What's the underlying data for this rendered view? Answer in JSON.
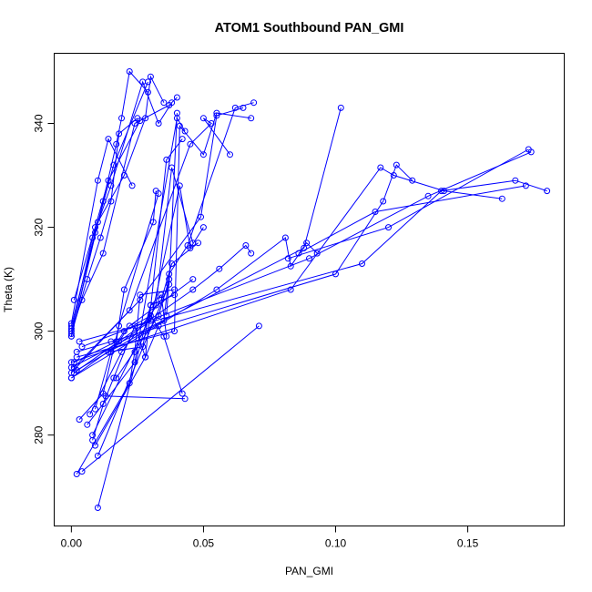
{
  "chart_data": {
    "type": "line",
    "title": "ATOM1 Southbound PAN_GMI",
    "xlabel": "PAN_GMI",
    "ylabel": "Theta (K)",
    "xlim": [
      -0.0065,
      0.1865
    ],
    "ylim": [
      262.5,
      353.5
    ],
    "xticks": [
      0.0,
      0.05,
      0.1,
      0.15
    ],
    "xtick_labels": [
      "0.00",
      "0.05",
      "0.10",
      "0.15"
    ],
    "yticks": [
      280,
      300,
      320,
      340
    ],
    "ytick_labels": [
      "280",
      "300",
      "320",
      "340"
    ],
    "series_color": "#0000ff",
    "marker": "open-circle",
    "grid": false,
    "legend": "none",
    "series": [
      {
        "x": [
          0.0,
          0.008,
          0.015,
          0.027,
          0.033,
          0.038,
          0.04
        ],
        "y": [
          300.0,
          318.0,
          328.0,
          348.0,
          340.0,
          344.0,
          345.0
        ]
      },
      {
        "x": [
          0.0,
          0.01,
          0.02,
          0.028,
          0.03,
          0.035
        ],
        "y": [
          301.0,
          321.0,
          330.0,
          341.0,
          349.0,
          344.0
        ]
      },
      {
        "x": [
          0.0,
          0.012,
          0.017,
          0.019,
          0.022,
          0.029
        ],
        "y": [
          299.0,
          325.0,
          336.0,
          341.0,
          350.0,
          346.0
        ]
      },
      {
        "x": [
          0.0,
          0.006,
          0.011,
          0.015,
          0.018,
          0.025
        ],
        "y": [
          299.5,
          310.0,
          318.0,
          325.0,
          338.0,
          341.0
        ]
      },
      {
        "x": [
          0.0,
          0.004,
          0.012,
          0.024,
          0.037
        ],
        "y": [
          300.5,
          306.0,
          315.0,
          340.0,
          343.5
        ]
      },
      {
        "x": [
          0.001,
          0.009,
          0.014,
          0.026
        ],
        "y": [
          306.0,
          320.0,
          329.0,
          340.5
        ]
      },
      {
        "x": [
          0.0,
          0.009,
          0.016,
          0.029
        ],
        "y": [
          299.0,
          319.0,
          332.0,
          348.0
        ]
      },
      {
        "x": [
          0.0,
          0.01,
          0.014,
          0.023
        ],
        "y": [
          301.5,
          329.0,
          337.0,
          328.0
        ]
      },
      {
        "x": [
          0.001,
          0.017,
          0.02,
          0.031,
          0.032
        ],
        "y": [
          294.0,
          298.0,
          308.0,
          321.0,
          327.0
        ]
      },
      {
        "x": [
          0.0,
          0.022,
          0.045,
          0.053,
          0.05,
          0.06
        ],
        "y": [
          292.0,
          304.0,
          336.0,
          340.0,
          341.0,
          334.0
        ]
      },
      {
        "x": [
          0.001,
          0.026,
          0.049,
          0.055,
          0.065
        ],
        "y": [
          293.0,
          306.0,
          322.0,
          341.5,
          343.0
        ]
      },
      {
        "x": [
          0.0,
          0.03,
          0.041,
          0.045,
          0.05
        ],
        "y": [
          291.0,
          302.0,
          328.0,
          316.0,
          320.0
        ]
      },
      {
        "x": [
          0.002,
          0.039,
          0.041,
          0.05,
          0.055,
          0.068
        ],
        "y": [
          295.0,
          300.0,
          339.5,
          334.0,
          342.0,
          341.0
        ]
      },
      {
        "x": [
          0.002,
          0.035,
          0.037,
          0.044,
          0.062,
          0.069
        ],
        "y": [
          292.5,
          302.0,
          311.0,
          316.5,
          343.0,
          344.0
        ]
      },
      {
        "x": [
          0.006,
          0.024,
          0.04,
          0.043
        ],
        "y": [
          282.0,
          294.0,
          341.0,
          338.5
        ]
      },
      {
        "x": [
          0.009,
          0.028,
          0.036,
          0.042
        ],
        "y": [
          278.0,
          295.0,
          333.0,
          337.0
        ]
      },
      {
        "x": [
          0.008,
          0.032,
          0.038,
          0.046
        ],
        "y": [
          280.0,
          305.0,
          331.5,
          317.0
        ]
      },
      {
        "x": [
          0.01,
          0.037,
          0.04
        ],
        "y": [
          276.0,
          309.0,
          342.0
        ]
      },
      {
        "x": [
          0.01,
          0.03,
          0.034,
          0.036
        ],
        "y": [
          266.0,
          305.0,
          307.0,
          299.0
        ]
      },
      {
        "x": [
          0.007,
          0.019,
          0.034,
          0.038,
          0.048
        ],
        "y": [
          284.0,
          296.0,
          306.0,
          313.0,
          317.0
        ]
      },
      {
        "x": [
          0.012,
          0.024,
          0.028,
          0.033
        ],
        "y": [
          286.0,
          301.0,
          295.0,
          301.0
        ]
      },
      {
        "x": [
          0.014,
          0.027,
          0.03,
          0.039
        ],
        "y": [
          296.0,
          297.0,
          305.0,
          307.0
        ]
      },
      {
        "x": [
          0.016,
          0.017,
          0.033,
          0.037,
          0.036
        ],
        "y": [
          291.0,
          291.0,
          303.0,
          310.0,
          303.0
        ]
      },
      {
        "x": [
          0.015,
          0.018,
          0.022,
          0.046
        ],
        "y": [
          298.0,
          298.0,
          301.0,
          310.0
        ]
      },
      {
        "x": [
          0.009,
          0.015,
          0.02,
          0.03,
          0.035,
          0.042
        ],
        "y": [
          285.0,
          296.0,
          300.0,
          303.0,
          299.0,
          288.0
        ]
      },
      {
        "x": [
          0.008,
          0.013,
          0.043
        ],
        "y": [
          279.0,
          287.5,
          287.0
        ]
      },
      {
        "x": [
          0.003,
          0.012,
          0.018,
          0.033
        ],
        "y": [
          283.0,
          288.0,
          301.0,
          326.5
        ]
      },
      {
        "x": [
          0.002,
          0.022,
          0.024,
          0.026,
          0.039
        ],
        "y": [
          272.5,
          290.0,
          296.0,
          307.0,
          308.0
        ]
      },
      {
        "x": [
          0.004,
          0.071
        ],
        "y": [
          273.0,
          301.0
        ]
      },
      {
        "x": [
          0.001,
          0.046,
          0.056,
          0.066,
          0.068
        ],
        "y": [
          292.0,
          308.0,
          312.0,
          316.5,
          315.0
        ]
      },
      {
        "x": [
          0.0,
          0.055,
          0.081,
          0.083,
          0.089,
          0.093
        ],
        "y": [
          291.0,
          308.0,
          318.0,
          312.5,
          317.0,
          315.0
        ]
      },
      {
        "x": [
          0.0,
          0.088,
          0.102
        ],
        "y": [
          293.0,
          316.0,
          343.0
        ]
      },
      {
        "x": [
          0.0,
          0.083,
          0.117,
          0.122,
          0.141,
          0.163
        ],
        "y": [
          294.0,
          308.0,
          331.5,
          330.0,
          327.0,
          325.5
        ]
      },
      {
        "x": [
          0.002,
          0.1,
          0.118,
          0.123,
          0.129
        ],
        "y": [
          296.0,
          311.0,
          325.0,
          332.0,
          329.0
        ]
      },
      {
        "x": [
          0.003,
          0.11,
          0.14,
          0.168,
          0.18
        ],
        "y": [
          298.0,
          313.0,
          327.0,
          329.0,
          327.0
        ]
      },
      {
        "x": [
          0.004,
          0.09,
          0.135,
          0.174
        ],
        "y": [
          297.0,
          314.0,
          326.0,
          334.5
        ]
      },
      {
        "x": [
          0.082,
          0.12,
          0.173
        ],
        "y": [
          314.0,
          320.0,
          335.0
        ]
      },
      {
        "x": [
          0.086,
          0.115,
          0.172
        ],
        "y": [
          315.0,
          323.0,
          328.0
        ]
      }
    ]
  }
}
